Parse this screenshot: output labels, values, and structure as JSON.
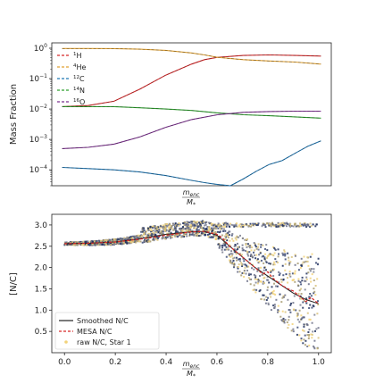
{
  "chart_data": [
    {
      "type": "line",
      "xlabel_num": "m",
      "xlabel_num_sub": "enc",
      "xlabel_den": "M",
      "xlabel_den_sub": "*",
      "ylabel": "Mass Fraction",
      "yscale": "log",
      "ylim": [
        3e-05,
        1.5
      ],
      "xlim": [
        -0.04,
        1.04
      ],
      "y_ticks": [
        {
          "base": "10",
          "exp": "−4",
          "value": 0.0001
        },
        {
          "base": "10",
          "exp": "−3",
          "value": 0.001
        },
        {
          "base": "10",
          "exp": "−2",
          "value": 0.01
        },
        {
          "base": "10",
          "exp": "−1",
          "value": 0.1
        },
        {
          "base": "10",
          "exp": "0",
          "value": 1
        }
      ],
      "legend_placement": "top-left",
      "series": [
        {
          "name": "H",
          "sup": "1",
          "color": "#d62728",
          "x": [
            0,
            0.1,
            0.2,
            0.3,
            0.4,
            0.5,
            0.55,
            0.6,
            0.7,
            0.8,
            0.9,
            1.0
          ],
          "y": [
            0.012,
            0.013,
            0.018,
            0.045,
            0.13,
            0.3,
            0.42,
            0.5,
            0.58,
            0.6,
            0.58,
            0.55
          ]
        },
        {
          "name": "He",
          "sup": "4",
          "color": "#e0a030",
          "x": [
            0,
            0.1,
            0.2,
            0.3,
            0.4,
            0.5,
            0.55,
            0.6,
            0.7,
            0.8,
            0.9,
            1.0
          ],
          "y": [
            0.98,
            0.98,
            0.97,
            0.93,
            0.85,
            0.7,
            0.6,
            0.5,
            0.42,
            0.38,
            0.35,
            0.3
          ]
        },
        {
          "name": "C",
          "sup": "12",
          "color": "#1f77b4",
          "x": [
            0,
            0.1,
            0.2,
            0.3,
            0.4,
            0.5,
            0.55,
            0.6,
            0.65,
            0.7,
            0.75,
            0.8,
            0.85,
            0.9,
            0.95,
            1.0
          ],
          "y": [
            0.00012,
            0.00011,
            0.0001,
            8.5e-05,
            6.5e-05,
            4.5e-05,
            3.8e-05,
            3.3e-05,
            3e-05,
            5e-05,
            9e-05,
            0.00015,
            0.0002,
            0.00035,
            0.0006,
            0.0009
          ]
        },
        {
          "name": "N",
          "sup": "14",
          "color": "#2ca02c",
          "x": [
            0,
            0.1,
            0.2,
            0.3,
            0.4,
            0.5,
            0.6,
            0.7,
            0.8,
            0.9,
            1.0
          ],
          "y": [
            0.012,
            0.012,
            0.012,
            0.011,
            0.01,
            0.009,
            0.0075,
            0.0065,
            0.006,
            0.0055,
            0.005
          ]
        },
        {
          "name": "O",
          "sup": "16",
          "color": "#7b2d8e",
          "x": [
            0,
            0.1,
            0.2,
            0.3,
            0.4,
            0.5,
            0.6,
            0.7,
            0.8,
            0.9,
            1.0
          ],
          "y": [
            0.0005,
            0.00055,
            0.0007,
            0.0012,
            0.0025,
            0.0045,
            0.0065,
            0.0078,
            0.0083,
            0.0085,
            0.0085
          ]
        }
      ]
    },
    {
      "type": "scatter",
      "xlabel_num": "m",
      "xlabel_num_sub": "enc",
      "xlabel_den": "M",
      "xlabel_den_sub": "*",
      "ylabel": "[N/C]",
      "xlim": [
        -0.05,
        1.05
      ],
      "ylim": [
        0.0,
        3.25
      ],
      "x_ticks": [
        "0.0",
        "0.2",
        "0.4",
        "0.6",
        "0.8",
        "1.0"
      ],
      "x_tick_values": [
        0.0,
        0.2,
        0.4,
        0.6,
        0.8,
        1.0
      ],
      "y_ticks": [
        "0.5",
        "1.0",
        "1.5",
        "2.0",
        "2.5",
        "3.0"
      ],
      "y_tick_values": [
        0.5,
        1.0,
        1.5,
        2.0,
        2.5,
        3.0
      ],
      "legend_placement": "lower-left",
      "series": [
        {
          "name": "Smoothed N/C",
          "color": "#222222",
          "style": "solid",
          "x": [
            0.0,
            0.1,
            0.2,
            0.3,
            0.4,
            0.5,
            0.55,
            0.6,
            0.65,
            0.7,
            0.75,
            0.8,
            0.85,
            0.9,
            0.95,
            1.0
          ],
          "y": [
            2.56,
            2.57,
            2.6,
            2.68,
            2.78,
            2.84,
            2.85,
            2.76,
            2.5,
            2.25,
            2.0,
            1.8,
            1.6,
            1.4,
            1.25,
            1.15
          ]
        },
        {
          "name": "MESA N/C",
          "color": "#d62728",
          "style": "dashed",
          "x": [
            0.0,
            0.1,
            0.2,
            0.3,
            0.4,
            0.45,
            0.5,
            0.55,
            0.6,
            0.62,
            0.65,
            0.7,
            0.72,
            0.75,
            0.78,
            0.8,
            0.82,
            0.85,
            0.88,
            0.9,
            0.92,
            0.95,
            0.97,
            1.0
          ],
          "y": [
            2.56,
            2.57,
            2.6,
            2.67,
            2.76,
            2.8,
            2.84,
            2.85,
            2.78,
            2.7,
            2.5,
            2.25,
            2.15,
            2.0,
            1.85,
            1.9,
            1.75,
            1.6,
            1.5,
            1.45,
            1.35,
            1.2,
            1.3,
            1.15
          ]
        },
        {
          "name": "raw N/C, Star 1",
          "color": "#f2d27a"
        }
      ]
    }
  ]
}
